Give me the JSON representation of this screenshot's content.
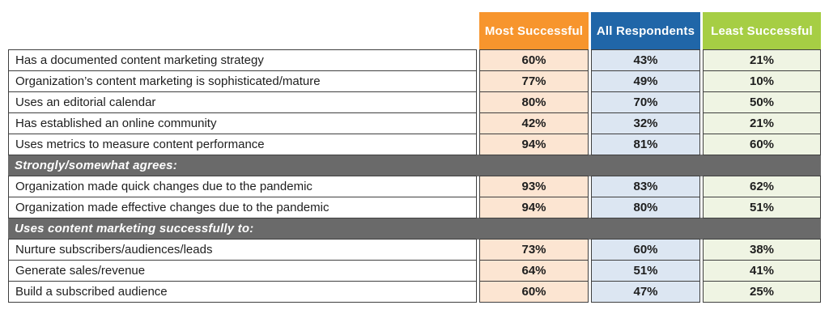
{
  "chart_data": {
    "type": "table",
    "value_format": "percent",
    "columns": [
      "Most Successful",
      "All Respondents",
      "Least Successful"
    ],
    "rows": [
      {
        "label": "Has a documented content marketing strategy",
        "values": [
          60,
          43,
          21
        ]
      },
      {
        "label": "Organization’s content marketing is sophisticated/mature",
        "values": [
          77,
          49,
          10
        ]
      },
      {
        "label": "Uses an editorial calendar",
        "values": [
          80,
          70,
          50
        ]
      },
      {
        "label": "Has established an online community",
        "values": [
          42,
          32,
          21
        ]
      },
      {
        "label": "Uses metrics to measure content performance",
        "values": [
          94,
          81,
          60
        ]
      },
      {
        "section": "Strongly/somewhat agrees:"
      },
      {
        "label": "Organization made quick changes due to the pandemic",
        "values": [
          93,
          83,
          62
        ]
      },
      {
        "label": "Organization made effective changes due to the pandemic",
        "values": [
          94,
          80,
          51
        ]
      },
      {
        "section": "Uses content marketing successfully to:"
      },
      {
        "label": "Nurture subscribers/audiences/leads",
        "values": [
          73,
          60,
          38
        ]
      },
      {
        "label": "Generate sales/revenue",
        "values": [
          64,
          51,
          41
        ]
      },
      {
        "label": "Build a subscribed audience",
        "values": [
          60,
          47,
          25
        ]
      }
    ]
  },
  "colors": {
    "header_bgs": [
      "#F7952D",
      "#2066A8",
      "#A6CE44"
    ],
    "header_text": "#FFFFFF",
    "cell_bgs": [
      "#FCE5D2",
      "#DCE6F2",
      "#EFF4E3"
    ],
    "section_bg": "#6A6A6A",
    "section_text": "#FFFFFF",
    "border": "#3F3F3F",
    "label_text": "#1E1E1E"
  }
}
